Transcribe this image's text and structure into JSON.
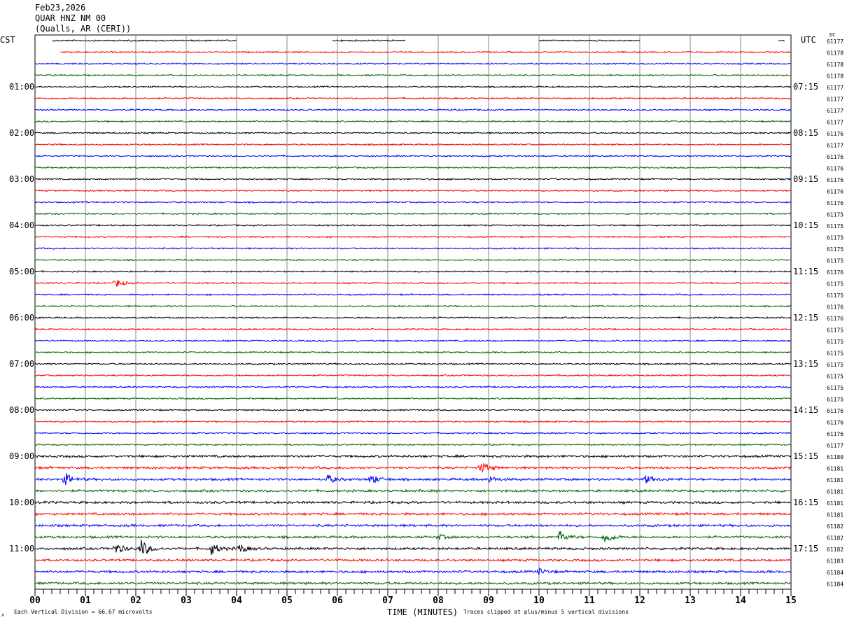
{
  "header": {
    "date": "Feb23,2026",
    "station": "QUAR HNZ NM 00",
    "location": "(Qualls, AR (CERI))"
  },
  "chart_data": {
    "type": "line",
    "title": "Feb23,2026 QUAR HNZ NM 00 (Qualls, AR (CERI))",
    "left_timezone": "CST",
    "right_timezone": "UTC",
    "dc_label": "DC",
    "xlabel": "TIME (MINUTES)",
    "xlim": [
      0,
      15
    ],
    "x_tick_labels": [
      "00",
      "01",
      "02",
      "03",
      "04",
      "05",
      "06",
      "07",
      "08",
      "09",
      "10",
      "11",
      "12",
      "13",
      "14",
      "15"
    ],
    "grid": true,
    "trace_colors": [
      "#000000",
      "#ff0000",
      "#0000ff",
      "#006400"
    ],
    "row_minutes": 15,
    "left_labels": [
      {
        "row": 4,
        "text": "01:00"
      },
      {
        "row": 8,
        "text": "02:00"
      },
      {
        "row": 12,
        "text": "03:00"
      },
      {
        "row": 16,
        "text": "04:00"
      },
      {
        "row": 20,
        "text": "05:00"
      },
      {
        "row": 24,
        "text": "06:00"
      },
      {
        "row": 28,
        "text": "07:00"
      },
      {
        "row": 32,
        "text": "08:00"
      },
      {
        "row": 36,
        "text": "09:00"
      },
      {
        "row": 40,
        "text": "10:00"
      },
      {
        "row": 44,
        "text": "11:00"
      }
    ],
    "right_labels": [
      {
        "row": 4,
        "text": "07:15"
      },
      {
        "row": 8,
        "text": "08:15"
      },
      {
        "row": 12,
        "text": "09:15"
      },
      {
        "row": 16,
        "text": "10:15"
      },
      {
        "row": 20,
        "text": "11:15"
      },
      {
        "row": 24,
        "text": "12:15"
      },
      {
        "row": 28,
        "text": "13:15"
      },
      {
        "row": 32,
        "text": "14:15"
      },
      {
        "row": 36,
        "text": "15:15"
      },
      {
        "row": 40,
        "text": "16:15"
      },
      {
        "row": 44,
        "text": "17:15"
      }
    ],
    "dc_values": [
      "61177",
      "61178",
      "61178",
      "61178",
      "61177",
      "61177",
      "61177",
      "61177",
      "61176",
      "61177",
      "61176",
      "61176",
      "61176",
      "61176",
      "61176",
      "61175",
      "61175",
      "61175",
      "61175",
      "61175",
      "61176",
      "61175",
      "61175",
      "61176",
      "61176",
      "61175",
      "61175",
      "61175",
      "61175",
      "61175",
      "61175",
      "61175",
      "61176",
      "61176",
      "61176",
      "61177",
      "61180",
      "61181",
      "61181",
      "61181",
      "61181",
      "61181",
      "61182",
      "61182",
      "61182",
      "61183",
      "61184",
      "61184"
    ],
    "first_row_segments": [
      [
        0.35,
        4.0
      ],
      [
        5.9,
        7.35
      ],
      [
        10.0,
        12.0
      ],
      [
        14.75,
        14.88
      ]
    ],
    "second_row_start": 0.5,
    "events": [
      {
        "row": 21,
        "minute": 1.6,
        "amplitude": 6
      },
      {
        "row": 37,
        "minute": 8.85,
        "amplitude": 9
      },
      {
        "row": 38,
        "minute": 0.6,
        "amplitude": 9
      },
      {
        "row": 38,
        "minute": 5.8,
        "amplitude": 7
      },
      {
        "row": 38,
        "minute": 6.65,
        "amplitude": 8
      },
      {
        "row": 38,
        "minute": 9.0,
        "amplitude": 5
      },
      {
        "row": 38,
        "minute": 12.1,
        "amplitude": 6
      },
      {
        "row": 43,
        "minute": 10.4,
        "amplitude": 9
      },
      {
        "row": 43,
        "minute": 11.3,
        "amplitude": 10
      },
      {
        "row": 43,
        "minute": 8.0,
        "amplitude": 4
      },
      {
        "row": 44,
        "minute": 2.1,
        "amplitude": 14
      },
      {
        "row": 44,
        "minute": 1.6,
        "amplitude": 8
      },
      {
        "row": 44,
        "minute": 3.5,
        "amplitude": 9
      },
      {
        "row": 44,
        "minute": 4.05,
        "amplitude": 7
      },
      {
        "row": 46,
        "minute": 10.0,
        "amplitude": 4
      }
    ],
    "scale_note": "Each Vertical Division =   66.67 microvolts",
    "clip_note": "Traces clipped at plus/minus 5 vertical divisions"
  }
}
